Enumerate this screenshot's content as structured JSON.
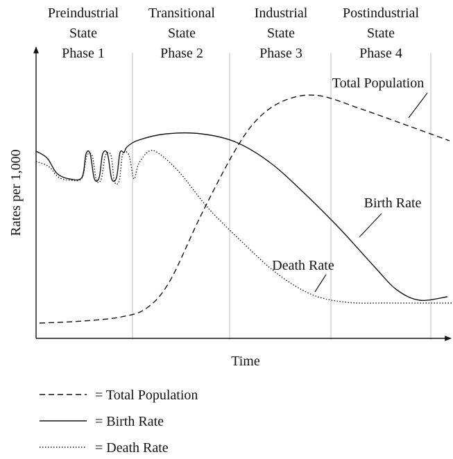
{
  "phases": [
    {
      "title": "Preindustrial",
      "state": "State",
      "phase": "Phase 1"
    },
    {
      "title": "Transitional",
      "state": "State",
      "phase": "Phase 2"
    },
    {
      "title": "Industrial",
      "state": "State",
      "phase": "Phase 3"
    },
    {
      "title": "Postindustrial",
      "state": "State",
      "phase": "Phase 4"
    }
  ],
  "y_axis_label": "Rates per 1,000",
  "x_axis_label": "Time",
  "curve_labels": {
    "total_population": "Total Population",
    "birth_rate": "Birth Rate",
    "death_rate": "Death Rate"
  },
  "legend": [
    {
      "label": "= Total Population"
    },
    {
      "label": "= Birth Rate"
    },
    {
      "label": "= Death Rate"
    }
  ]
}
